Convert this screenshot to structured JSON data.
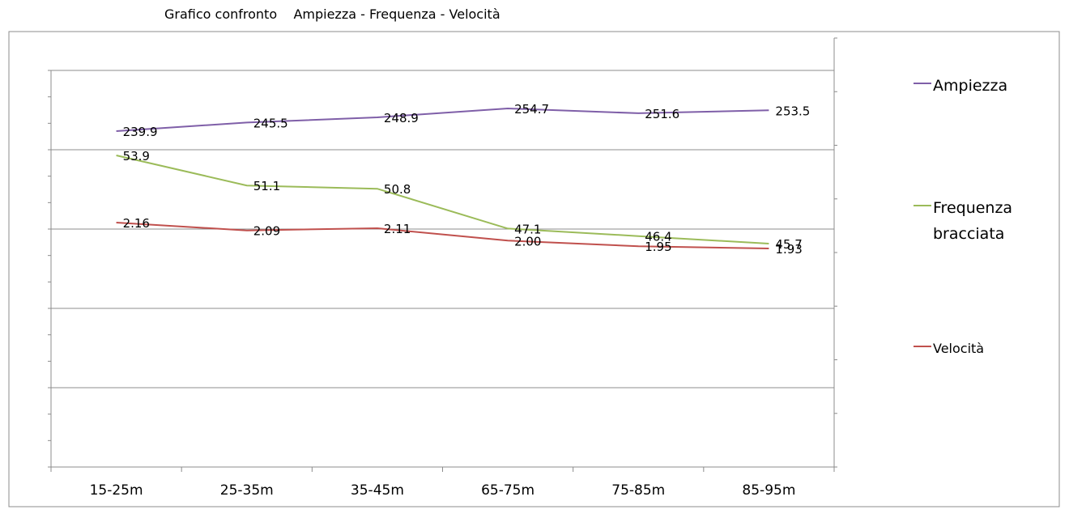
{
  "chart_data": {
    "type": "line",
    "title": "Grafico confronto    Ampiezza - Frequenza - Velocità",
    "categories": [
      "15-25m",
      "25-35m",
      "35-45m",
      "65-75m",
      "75-85m",
      "85-95m"
    ],
    "series": [
      {
        "name": "Ampiezza",
        "color": "#7f5fa8",
        "values": [
          239.9,
          245.5,
          248.9,
          254.7,
          251.6,
          253.5
        ],
        "labels": [
          "239.9",
          "245.5",
          "248.9",
          "254.7",
          "251.6",
          "253.5"
        ]
      },
      {
        "name": "Frequenza bracciata",
        "color": "#9bbb59",
        "values": [
          53.9,
          51.1,
          50.8,
          47.1,
          46.4,
          45.7
        ],
        "labels": [
          "53.9",
          "51.1",
          "50.8",
          "47.1",
          "46.4",
          "45.7"
        ]
      },
      {
        "name": "Velocità",
        "color": "#c0504d",
        "values": [
          2.16,
          2.09,
          2.11,
          2.0,
          1.95,
          1.93
        ],
        "labels": [
          "2.16",
          "2.09",
          "2.11",
          "2.00",
          "1.95",
          "1.93"
        ]
      }
    ],
    "grid": true,
    "legend_position": "right",
    "xlabel": "",
    "ylabel": ""
  }
}
